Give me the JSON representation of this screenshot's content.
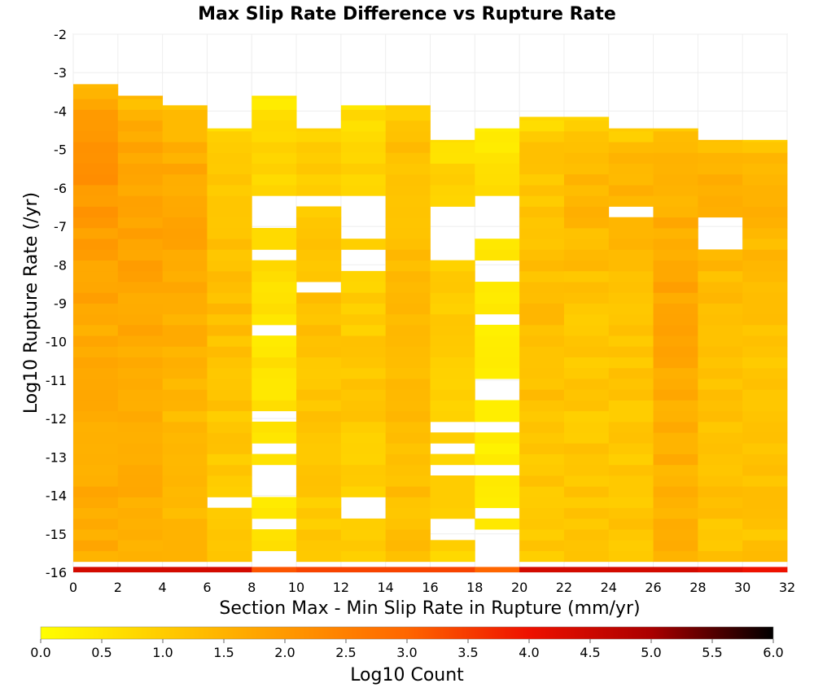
{
  "chart_data": {
    "type": "heatmap",
    "title": "Max Slip Rate Difference vs Rupture Rate",
    "xlabel": "Section Max - Min Slip Rate in Rupture (mm/yr)",
    "ylabel": "Log10 Rupture Rate (/yr)",
    "xlim": [
      0,
      32
    ],
    "ylim": [
      -16,
      -2
    ],
    "x_ticks": [
      "0",
      "2",
      "4",
      "6",
      "8",
      "10",
      "12",
      "14",
      "16",
      "18",
      "20",
      "22",
      "24",
      "26",
      "28",
      "30",
      "32"
    ],
    "y_ticks": [
      "-2",
      "-3",
      "-4",
      "-5",
      "-6",
      "-7",
      "-8",
      "-9",
      "-10",
      "-11",
      "-12",
      "-13",
      "-14",
      "-15",
      "-16"
    ],
    "x_bin_width": 2,
    "y_bin_width": 0.28,
    "grid": true,
    "colorbar": {
      "label": "Log10 Count",
      "range": [
        0,
        6
      ],
      "ticks": [
        "0.0",
        "0.5",
        "1.0",
        "1.5",
        "2.0",
        "2.5",
        "3.0",
        "3.5",
        "4.0",
        "4.5",
        "5.0",
        "5.5",
        "6.0"
      ],
      "colors": [
        "#ffff00",
        "#ffcc00",
        "#ff9900",
        "#ff6600",
        "#ee1100",
        "#aa0000",
        "#000000"
      ]
    },
    "columns": [
      {
        "x": 0,
        "min_rate": -16,
        "max_rate": -3.3,
        "base": 1.65,
        "peak": -5.8,
        "peak_val": 2.1,
        "gaps": []
      },
      {
        "x": 2,
        "min_rate": -16,
        "max_rate": -3.6,
        "base": 1.6,
        "peak": -7.3,
        "peak_val": 1.9,
        "gaps": []
      },
      {
        "x": 4,
        "min_rate": -16,
        "max_rate": -3.85,
        "base": 1.4,
        "peak": -7.0,
        "peak_val": 1.8,
        "gaps": []
      },
      {
        "x": 6,
        "min_rate": -16,
        "max_rate": -4.45,
        "base": 1.05,
        "peak": -9.0,
        "peak_val": 1.3,
        "gaps": [
          [
            -14.3,
            -14.05
          ]
        ]
      },
      {
        "x": 8,
        "min_rate": -16,
        "max_rate": -3.6,
        "base": 0.55,
        "peak": -5.0,
        "peak_val": 0.9,
        "gaps": [
          [
            -7.0,
            -6.2
          ],
          [
            -7.9,
            -7.6
          ],
          [
            -8.3,
            -8.1
          ],
          [
            -9.9,
            -9.6
          ],
          [
            -11.1,
            -10.9
          ],
          [
            -12.0,
            -11.7
          ],
          [
            -12.9,
            -12.5
          ],
          [
            -14.1,
            -13.3
          ],
          [
            -14.9,
            -14.7
          ],
          [
            -15.6,
            -15.3
          ]
        ]
      },
      {
        "x": 10,
        "min_rate": -16,
        "max_rate": -4.45,
        "base": 1.05,
        "peak": -9.5,
        "peak_val": 1.2,
        "gaps": [
          [
            -6.5,
            -6.2
          ],
          [
            -8.7,
            -8.4
          ]
        ]
      },
      {
        "x": 12,
        "min_rate": -16,
        "max_rate": -3.85,
        "base": 0.9,
        "peak": -11.0,
        "peak_val": 1.1,
        "gaps": [
          [
            -7.3,
            -6.2
          ],
          [
            -8.1,
            -7.6
          ],
          [
            -14.6,
            -14.0
          ]
        ]
      },
      {
        "x": 14,
        "min_rate": -16,
        "max_rate": -3.85,
        "base": 1.25,
        "peak": -9.8,
        "peak_val": 1.4,
        "gaps": []
      },
      {
        "x": 16,
        "min_rate": -16,
        "max_rate": -4.75,
        "base": 0.85,
        "peak": -8.5,
        "peak_val": 1.0,
        "gaps": [
          [
            -7.9,
            -6.5
          ],
          [
            -12.4,
            -12.2
          ],
          [
            -13.0,
            -12.7
          ],
          [
            -13.5,
            -13.3
          ],
          [
            -15.3,
            -14.7
          ],
          [
            -15.7,
            -15.6
          ]
        ]
      },
      {
        "x": 18,
        "min_rate": -16,
        "max_rate": -4.45,
        "base": 0.4,
        "peak": -6.0,
        "peak_val": 0.7,
        "gaps": [
          [
            -7.3,
            -6.2
          ],
          [
            -8.1,
            -7.9
          ],
          [
            -8.4,
            -8.2
          ],
          [
            -9.6,
            -9.3
          ],
          [
            -11.4,
            -11.1
          ],
          [
            -12.5,
            -12.2
          ],
          [
            -13.6,
            -13.3
          ],
          [
            -14.6,
            -14.2
          ],
          [
            -15.9,
            -14.9
          ]
        ]
      },
      {
        "x": 20,
        "min_rate": -16,
        "max_rate": -4.15,
        "base": 1.1,
        "peak": -10.0,
        "peak_val": 1.3,
        "gaps": []
      },
      {
        "x": 22,
        "min_rate": -16,
        "max_rate": -4.15,
        "base": 1.1,
        "peak": -6.0,
        "peak_val": 1.45,
        "gaps": []
      },
      {
        "x": 24,
        "min_rate": -16,
        "max_rate": -4.45,
        "base": 1.1,
        "peak": -6.0,
        "peak_val": 1.45,
        "gaps": [
          [
            -6.85,
            -6.6
          ]
        ]
      },
      {
        "x": 26,
        "min_rate": -16,
        "max_rate": -4.45,
        "base": 1.5,
        "peak": -9.5,
        "peak_val": 1.8,
        "gaps": []
      },
      {
        "x": 28,
        "min_rate": -16,
        "max_rate": -4.75,
        "base": 1.2,
        "peak": -5.8,
        "peak_val": 1.55,
        "gaps": [
          [
            -7.5,
            -6.85
          ]
        ]
      },
      {
        "x": 30,
        "min_rate": -16,
        "max_rate": -4.75,
        "base": 1.2,
        "peak": -5.8,
        "peak_val": 1.55,
        "gaps": []
      }
    ],
    "bottom_row": {
      "y": -16,
      "values": [
        4.4,
        4.4,
        4.4,
        4.4,
        3.2,
        3.4,
        3.4,
        3.4,
        3.4,
        3.0,
        4.4,
        4.4,
        4.4,
        4.4,
        4.2,
        4.0
      ]
    }
  }
}
